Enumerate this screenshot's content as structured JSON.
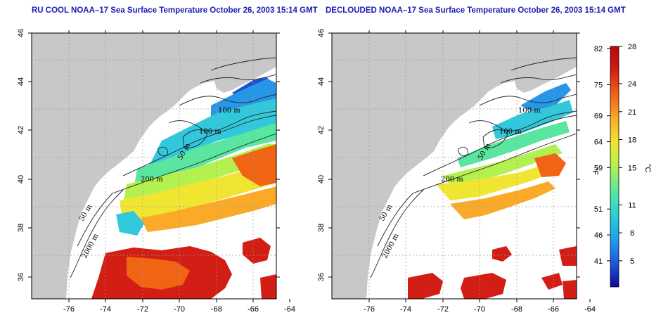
{
  "panels": [
    {
      "title": "RU COOL NOAA–17 Sea Surface Temperature October 26, 2003 15:14 GMT",
      "x_ticks": [
        "-76",
        "-74",
        "-72",
        "-70",
        "-68",
        "-66",
        "-64"
      ],
      "y_ticks": [
        "36",
        "38",
        "40",
        "42",
        "44",
        "46"
      ],
      "contour_labels": [
        "100 m",
        "100 m",
        "50 m",
        "200 m",
        "50 m",
        "2000 m"
      ]
    },
    {
      "title": "DECLOUDED NOAA–17 Sea Surface Temperature October 26, 2003 15:14 GMT",
      "x_ticks": [
        "-76",
        "-74",
        "-72",
        "-70",
        "-68",
        "-66",
        "-64"
      ],
      "y_ticks": [
        "36",
        "38",
        "40",
        "42",
        "44",
        "46"
      ],
      "contour_labels": [
        "100 m",
        "100 m",
        "50 m",
        "200 m",
        "50 m",
        "2000 m"
      ]
    }
  ],
  "colorbar": {
    "fahrenheit_ticks": [
      "82",
      "75",
      "69",
      "64",
      "59",
      "51",
      "46",
      "41"
    ],
    "celsius_ticks": [
      "28",
      "24",
      "21",
      "18",
      "15",
      "11",
      "8",
      "5"
    ],
    "fahrenheit_label": "°F",
    "celsius_label": "°C",
    "colors": [
      "#0a0a9a",
      "#1e5adc",
      "#1ea0f0",
      "#28d2d2",
      "#5ae6a0",
      "#b4f050",
      "#f0e632",
      "#faaa28",
      "#f06414",
      "#d21e14",
      "#b40a0a"
    ]
  },
  "colors": {
    "land": "#c8c8c8",
    "title": "#1a1ab4",
    "sea_cold": "#1e64dc",
    "sea_cool": "#32c8dc",
    "sea_mild": "#78e678",
    "sea_warm": "#f0e632",
    "sea_hot": "#f07814",
    "sea_very_hot": "#dc1e14"
  }
}
